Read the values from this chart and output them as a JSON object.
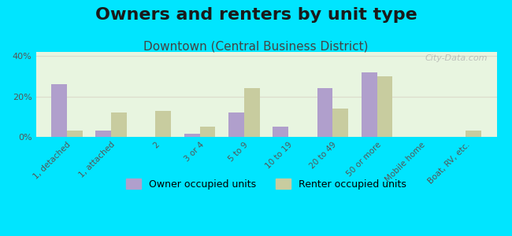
{
  "title": "Owners and renters by unit type",
  "subtitle": "Downtown (Central Business District)",
  "categories": [
    "1, detached",
    "1, attached",
    "2",
    "3 or 4",
    "5 to 9",
    "10 to 19",
    "20 to 49",
    "50 or more",
    "Mobile home",
    "Boat, RV, etc."
  ],
  "owner_values": [
    26,
    3,
    0,
    1.5,
    12,
    5,
    24,
    32,
    0,
    0
  ],
  "renter_values": [
    3,
    12,
    13,
    5,
    24,
    0,
    14,
    30,
    0,
    3
  ],
  "owner_color": "#b09fcc",
  "renter_color": "#c8cc9f",
  "background_top": "#e8f5e0",
  "background_bottom": "#f5f5dc",
  "bg_outer": "#00e5ff",
  "ylim": [
    0,
    42
  ],
  "yticks": [
    0,
    20,
    40
  ],
  "ytick_labels": [
    "0%",
    "20%",
    "40%"
  ],
  "bar_width": 0.35,
  "legend_owner": "Owner occupied units",
  "legend_renter": "Renter occupied units",
  "title_fontsize": 16,
  "subtitle_fontsize": 11,
  "label_fontsize": 7.5,
  "legend_fontsize": 9,
  "watermark": "City-Data.com"
}
